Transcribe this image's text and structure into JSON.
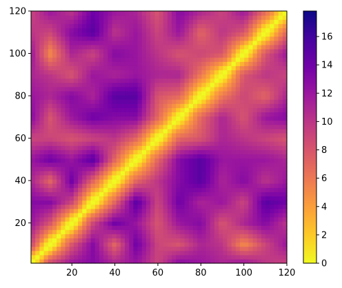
{
  "chart_data": {
    "type": "heatmap",
    "title": "",
    "xlabel": "",
    "ylabel": "",
    "xlim": [
      1,
      120
    ],
    "ylim": [
      1,
      120
    ],
    "x_ticks": [
      20,
      40,
      60,
      80,
      100,
      120
    ],
    "y_ticks": [
      20,
      40,
      60,
      80,
      100,
      120
    ],
    "grid": false,
    "symmetric": true,
    "diagonal_value": 0,
    "colormap": "plasma",
    "colormap_stops": [
      "#f0f921",
      "#fdca26",
      "#fb9f3a",
      "#ed7953",
      "#d8576b",
      "#bd3786",
      "#9c179e",
      "#7201a8",
      "#46039f",
      "#0d0887"
    ],
    "colorbar": {
      "min": 0,
      "max": 17.8,
      "ticks": [
        0,
        2,
        4,
        6,
        8,
        10,
        12,
        14,
        16
      ],
      "placement": "right"
    },
    "grid_points": [
      1,
      10,
      20,
      30,
      40,
      50,
      60,
      70,
      80,
      90,
      100,
      110,
      120
    ],
    "values": [
      [
        0,
        9,
        12,
        13,
        11,
        12,
        9,
        13,
        12,
        11,
        12,
        10,
        9
      ],
      [
        9,
        0,
        8,
        13,
        7,
        14,
        9,
        8,
        11,
        10,
        5,
        9,
        12
      ],
      [
        12,
        8,
        0,
        9,
        14,
        12,
        8,
        12,
        13,
        8,
        11,
        13,
        10
      ],
      [
        13,
        13,
        9,
        0,
        7,
        15,
        9,
        14,
        11,
        12,
        9,
        15,
        14
      ],
      [
        11,
        7,
        14,
        7,
        0,
        7,
        10,
        13,
        15,
        11,
        13,
        10,
        12
      ],
      [
        12,
        14,
        12,
        15,
        7,
        0,
        7,
        13,
        15,
        12,
        12,
        12,
        11
      ],
      [
        9,
        9,
        8,
        9,
        10,
        7,
        0,
        7,
        8,
        11,
        10,
        9,
        8
      ],
      [
        13,
        8,
        12,
        14,
        13,
        13,
        7,
        0,
        7,
        11,
        8,
        12,
        13
      ],
      [
        12,
        11,
        13,
        11,
        15,
        15,
        8,
        7,
        0,
        6,
        9,
        7,
        11
      ],
      [
        11,
        10,
        8,
        12,
        11,
        12,
        11,
        11,
        6,
        0,
        8,
        10,
        9
      ],
      [
        12,
        5,
        11,
        9,
        13,
        12,
        10,
        8,
        9,
        8,
        0,
        8,
        12
      ],
      [
        10,
        9,
        13,
        15,
        10,
        12,
        9,
        12,
        7,
        10,
        8,
        0,
        7
      ],
      [
        9,
        12,
        10,
        14,
        12,
        11,
        8,
        13,
        11,
        9,
        12,
        7,
        0
      ]
    ]
  }
}
